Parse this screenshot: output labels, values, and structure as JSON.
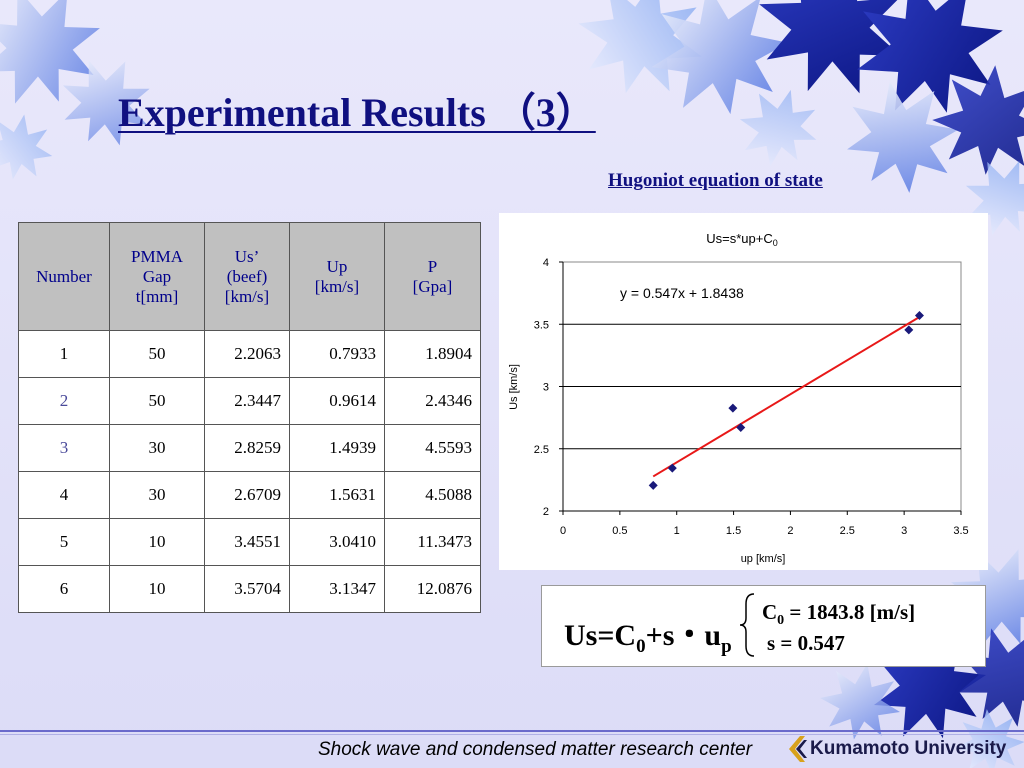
{
  "slide": {
    "title": "Experimental Results （3）",
    "chart_caption": "Hugoniot equation of state",
    "footer": "Shock wave and condensed matter research center",
    "logo_text": "Kumamoto University"
  },
  "table": {
    "headers": [
      [
        "Number"
      ],
      [
        "PMMA",
        "Gap",
        "t[mm]"
      ],
      [
        "Us’",
        "(beef)",
        "[km/s]"
      ],
      [
        "Up",
        "[km/s]"
      ],
      [
        "P",
        "[Gpa]"
      ]
    ],
    "rows": [
      [
        "1",
        "50",
        "2.2063",
        "0.7933",
        "1.8904"
      ],
      [
        "2",
        "50",
        "2.3447",
        "0.9614",
        "2.4346"
      ],
      [
        "3",
        "30",
        "2.8259",
        "1.4939",
        "4.5593"
      ],
      [
        "4",
        "30",
        "2.6709",
        "1.5631",
        "4.5088"
      ],
      [
        "5",
        "10",
        "3.4551",
        "3.0410",
        "11.3473"
      ],
      [
        "6",
        "10",
        "3.5704",
        "3.1347",
        "12.0876"
      ]
    ]
  },
  "equation": {
    "main": "Us=C",
    "main_sub": "0",
    "main_mid": "+s・u",
    "main_sub2": "p",
    "c0_label": "C",
    "c0_sub": "0",
    "c0_value": " = 1843.8 [m/s]",
    "s_line": "s  = 0.547"
  },
  "colors": {
    "title": "#101080",
    "marker": "#1a1a7a",
    "fit_line": "#e81818",
    "header_bg": "#c0c0c0"
  },
  "chart_data": {
    "type": "scatter",
    "title": "Us=s*up+C",
    "title_sub": "0",
    "xlabel": "up [km/s]",
    "ylabel": "Us [km/s]",
    "xlim": [
      0,
      3.5
    ],
    "ylim": [
      2,
      4
    ],
    "xticks": [
      "0",
      "0.5",
      "1",
      "1.5",
      "2",
      "2.5",
      "3",
      "3.5"
    ],
    "yticks": [
      "2",
      "2.5",
      "3",
      "3.5",
      "4"
    ],
    "grid": true,
    "series": [
      {
        "x": [
          0.7933,
          0.9614,
          1.4939,
          1.5631,
          3.041,
          3.1347
        ],
        "y": [
          2.2063,
          2.3447,
          2.8259,
          2.6709,
          3.4551,
          3.5704
        ]
      }
    ],
    "trendline": {
      "label": "y = 0.547x + 1.8438",
      "slope": 0.547,
      "intercept": 1.8438,
      "x_range": [
        0.7933,
        3.1347
      ]
    }
  }
}
